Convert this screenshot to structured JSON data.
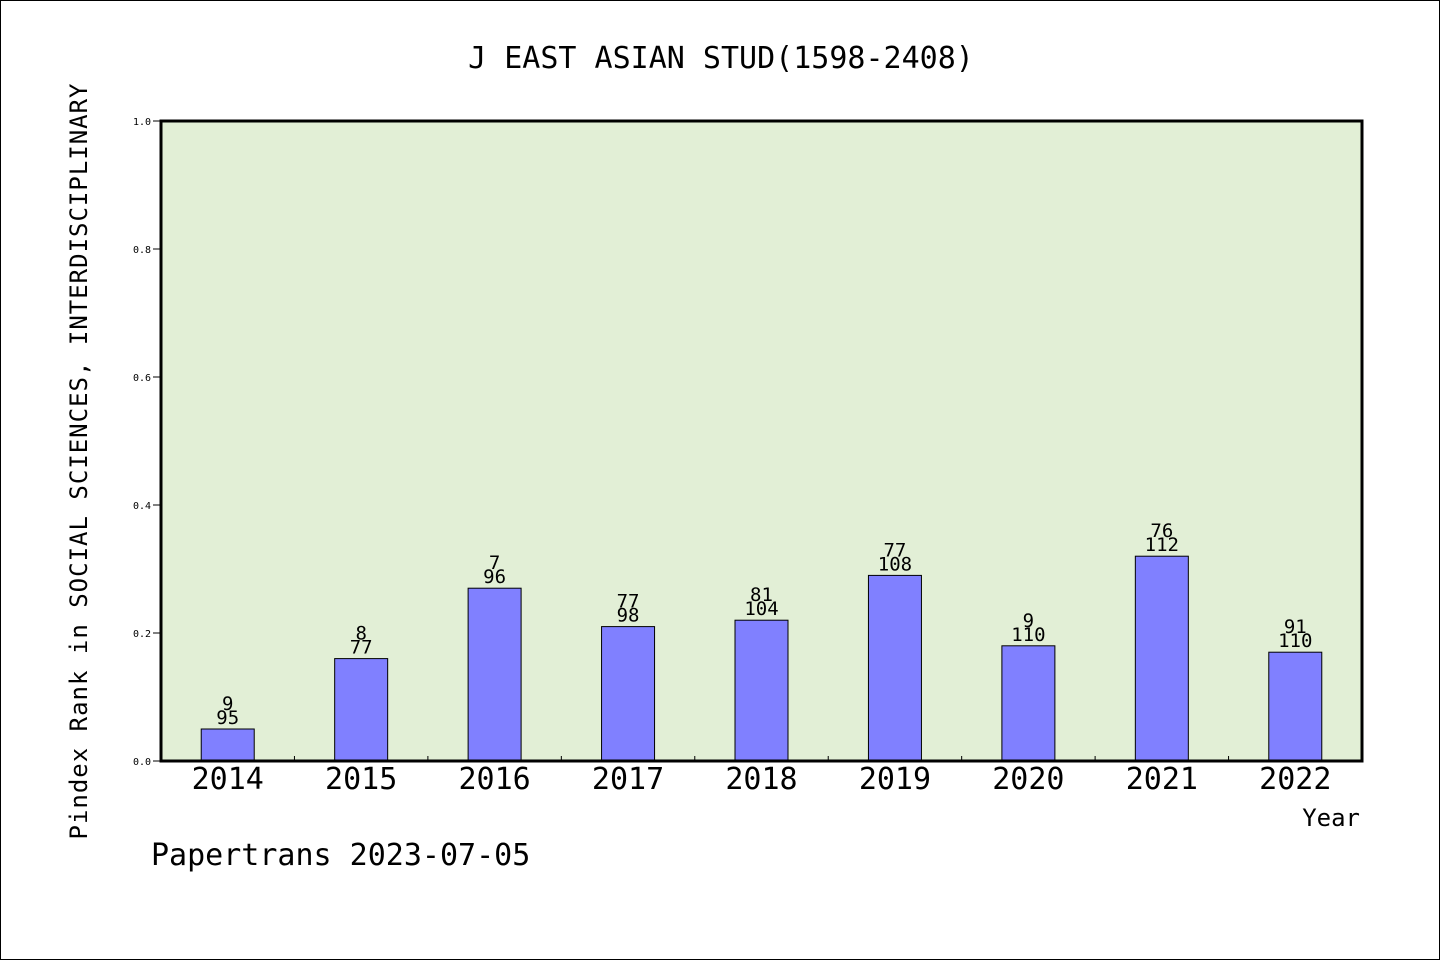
{
  "chart_data": {
    "type": "bar",
    "title": "J EAST ASIAN STUD(1598-2408)",
    "xlabel": "Year",
    "ylabel": "Pindex Rank in SOCIAL SCIENCES, INTERDISCIPLINARY",
    "ylim": [
      0,
      1.0
    ],
    "yticks": [
      "0.0",
      "0.2",
      "0.4",
      "0.6",
      "0.8",
      "1.0"
    ],
    "categories": [
      "2014",
      "2015",
      "2016",
      "2017",
      "2018",
      "2019",
      "2020",
      "2021",
      "2022"
    ],
    "values": [
      0.05,
      0.16,
      0.27,
      0.21,
      0.22,
      0.29,
      0.18,
      0.32,
      0.17
    ],
    "rank_labels": [
      "9",
      "8",
      "7",
      "77",
      "81",
      "77",
      "9",
      "76",
      "91"
    ],
    "total_labels": [
      "95",
      "77",
      "96",
      "98",
      "104",
      "108",
      "110",
      "112",
      "110"
    ],
    "grid": false,
    "colors": {
      "bar": "#8080ff",
      "plot_bg": "#e2efd6"
    }
  },
  "footer": "Papertrans 2023-07-05"
}
